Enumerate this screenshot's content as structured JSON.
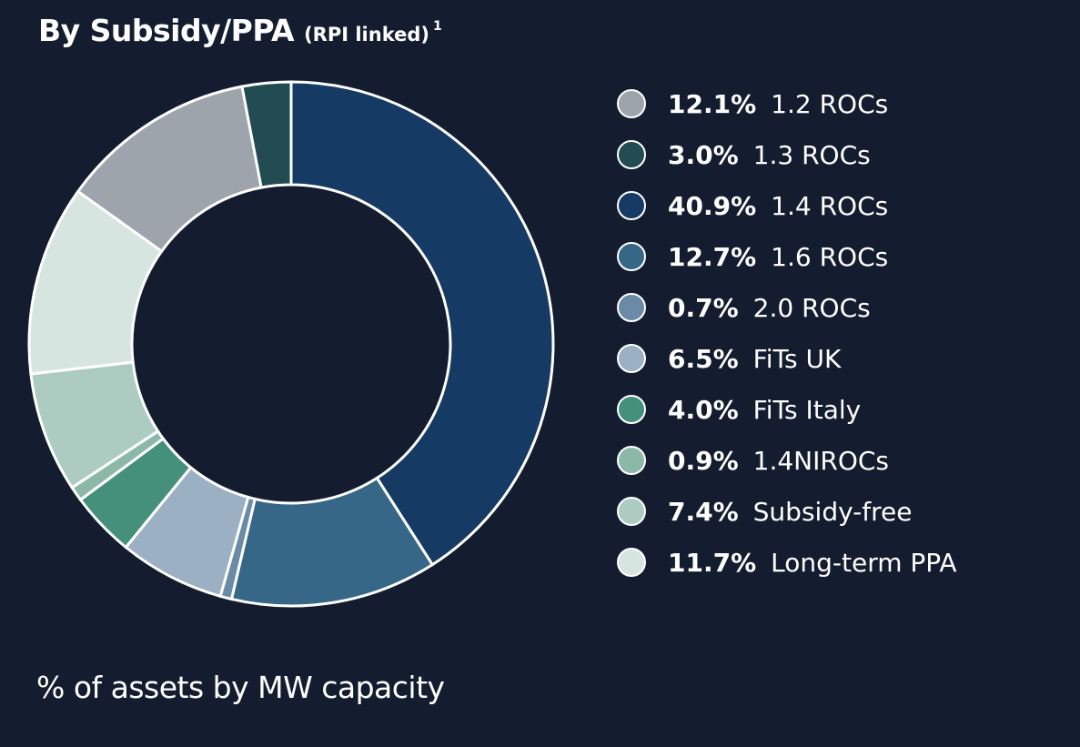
{
  "title": {
    "main": "By Subsidy/PPA",
    "sub": "(RPI linked)",
    "footnote": "1"
  },
  "caption": "% of assets by MW capacity",
  "chart_data": {
    "type": "pie",
    "variant": "donut",
    "start_angle_deg": 0,
    "direction": "clockwise",
    "slices": [
      {
        "label": "1.4 ROCs",
        "pct_text": "40.9%",
        "value": 40.9,
        "color": "#153a63"
      },
      {
        "label": "1.6 ROCs",
        "pct_text": "12.7%",
        "value": 12.7,
        "color": "#376787"
      },
      {
        "label": "2.0 ROCs",
        "pct_text": "0.7%",
        "value": 0.7,
        "color": "#6b8aa6"
      },
      {
        "label": "FiTs UK",
        "pct_text": "6.5%",
        "value": 6.5,
        "color": "#9cb0c3"
      },
      {
        "label": "FiTs Italy",
        "pct_text": "4.0%",
        "value": 4.0,
        "color": "#45907a"
      },
      {
        "label": "1.4NIROCs",
        "pct_text": "0.9%",
        "value": 0.9,
        "color": "#8cb8a8"
      },
      {
        "label": "Subsidy-free",
        "pct_text": "7.4%",
        "value": 7.4,
        "color": "#acccc1"
      },
      {
        "label": "Long-term PPA",
        "pct_text": "11.7%",
        "value": 11.7,
        "color": "#d7e5e1"
      },
      {
        "label": "1.2 ROCs",
        "pct_text": "12.1%",
        "value": 12.1,
        "color": "#9ea4ab"
      },
      {
        "label": "1.3 ROCs",
        "pct_text": "3.0%",
        "value": 3.0,
        "color": "#224b52"
      }
    ],
    "legend": {
      "placement": "right",
      "order": [
        "1.2 ROCs",
        "1.3 ROCs",
        "1.4 ROCs",
        "1.6 ROCs",
        "2.0 ROCs",
        "FiTs UK",
        "FiTs Italy",
        "1.4NIROCs",
        "Subsidy-free",
        "Long-term PPA"
      ]
    }
  },
  "colors": {
    "background": "#141c2f",
    "text": "#ffffff",
    "slice_border": "#ffffff"
  }
}
